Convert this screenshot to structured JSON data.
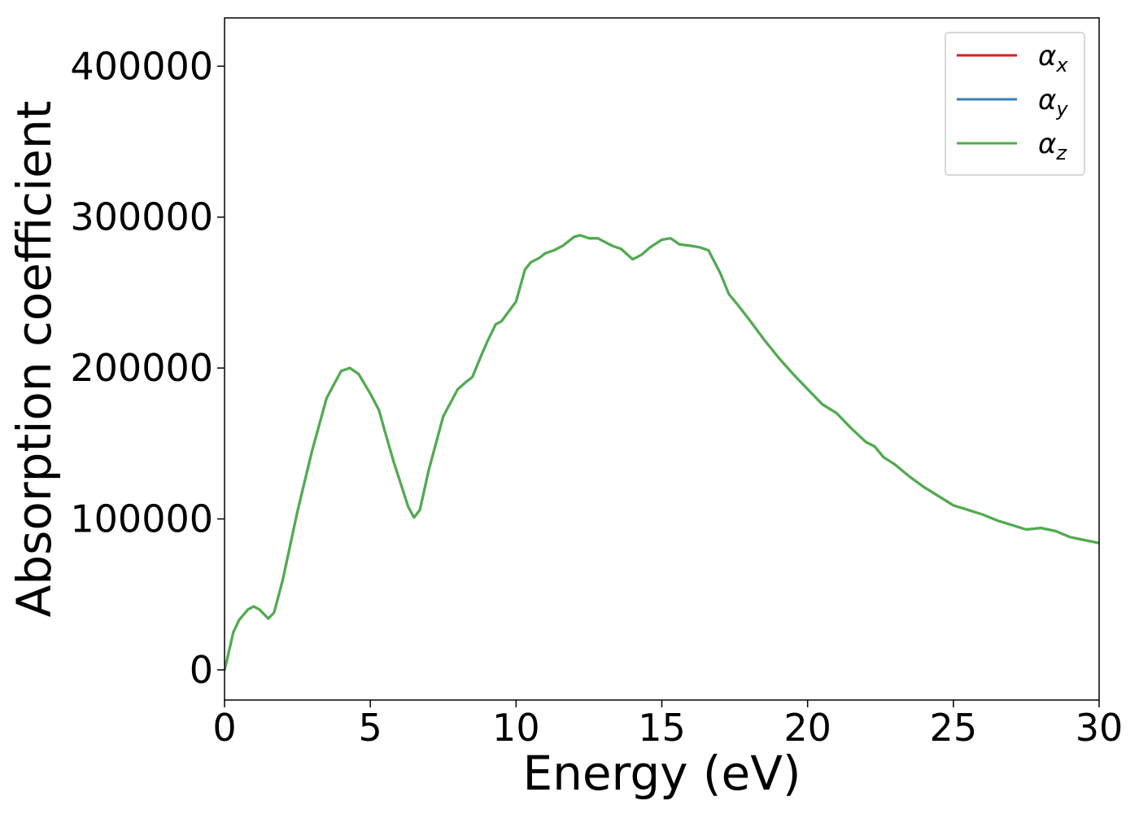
{
  "chart_data": {
    "type": "line",
    "title": "",
    "xlabel": "Energy (eV)",
    "ylabel": "Absorption coefficient",
    "xlim": [
      0,
      30
    ],
    "ylim": [
      -20000,
      432000
    ],
    "xticks": [
      0,
      5,
      10,
      15,
      20,
      25,
      30
    ],
    "xtick_labels": [
      "0",
      "5",
      "10",
      "15",
      "20",
      "25",
      "30"
    ],
    "yticks": [
      0,
      100000,
      200000,
      300000,
      400000
    ],
    "ytick_labels": [
      "0",
      "100000",
      "200000",
      "300000",
      "400000"
    ],
    "grid": false,
    "legend_position": "top-right",
    "x": [
      0,
      0.1,
      0.3,
      0.5,
      0.8,
      1.0,
      1.2,
      1.5,
      1.7,
      2.0,
      2.5,
      3.0,
      3.5,
      4.0,
      4.3,
      4.6,
      5.0,
      5.3,
      5.5,
      5.8,
      6.0,
      6.3,
      6.5,
      6.7,
      7.0,
      7.5,
      8.0,
      8.3,
      8.5,
      8.8,
      9.0,
      9.3,
      9.5,
      10.0,
      10.3,
      10.5,
      10.8,
      11.0,
      11.3,
      11.6,
      12.0,
      12.2,
      12.5,
      12.8,
      13.0,
      13.3,
      13.6,
      14.0,
      14.3,
      14.6,
      15.0,
      15.3,
      15.6,
      16.0,
      16.3,
      16.6,
      17.0,
      17.3,
      17.6,
      18.0,
      18.5,
      19.0,
      19.5,
      20.0,
      20.5,
      21.0,
      21.5,
      22.0,
      22.3,
      22.6,
      23.0,
      23.5,
      24.0,
      24.5,
      25.0,
      25.5,
      26.0,
      26.5,
      27.0,
      27.5,
      28.0,
      28.5,
      29.0,
      29.5,
      30.0
    ],
    "series": [
      {
        "name": "αx",
        "symbol": "α",
        "subscript": "x",
        "color": "#e41a1c",
        "values": [
          0,
          8000,
          25000,
          33000,
          40000,
          42000,
          40000,
          34000,
          38000,
          60000,
          105000,
          145000,
          180000,
          198000,
          200000,
          196000,
          183000,
          172000,
          158000,
          138000,
          126000,
          108000,
          101000,
          106000,
          132000,
          168000,
          186000,
          191000,
          194000,
          208000,
          217000,
          229000,
          231000,
          244000,
          265000,
          270000,
          273000,
          276000,
          278000,
          281000,
          287000,
          288000,
          286000,
          286000,
          284000,
          281000,
          279000,
          272000,
          275000,
          280000,
          285000,
          286000,
          282000,
          281000,
          280000,
          278000,
          263000,
          249000,
          242000,
          232000,
          219000,
          207000,
          196000,
          186000,
          176000,
          170000,
          160000,
          151000,
          148000,
          141000,
          136000,
          128000,
          121000,
          115000,
          109000,
          106000,
          103000,
          99000,
          96000,
          93000,
          94000,
          92000,
          88000,
          86000,
          84000
        ]
      },
      {
        "name": "αy",
        "symbol": "α",
        "subscript": "y",
        "color": "#377eb8",
        "values": [
          0,
          8000,
          25000,
          33000,
          40000,
          42000,
          40000,
          34000,
          38000,
          60000,
          105000,
          145000,
          180000,
          198000,
          200000,
          196000,
          183000,
          172000,
          158000,
          138000,
          126000,
          108000,
          101000,
          106000,
          132000,
          168000,
          186000,
          191000,
          194000,
          208000,
          217000,
          229000,
          231000,
          244000,
          265000,
          270000,
          273000,
          276000,
          278000,
          281000,
          287000,
          288000,
          286000,
          286000,
          284000,
          281000,
          279000,
          272000,
          275000,
          280000,
          285000,
          286000,
          282000,
          281000,
          280000,
          278000,
          263000,
          249000,
          242000,
          232000,
          219000,
          207000,
          196000,
          186000,
          176000,
          170000,
          160000,
          151000,
          148000,
          141000,
          136000,
          128000,
          121000,
          115000,
          109000,
          106000,
          103000,
          99000,
          96000,
          93000,
          94000,
          92000,
          88000,
          86000,
          84000
        ]
      },
      {
        "name": "αz",
        "symbol": "α",
        "subscript": "z",
        "color": "#4daf4a",
        "values": [
          0,
          8000,
          25000,
          33000,
          40000,
          42000,
          40000,
          34000,
          38000,
          60000,
          105000,
          145000,
          180000,
          198000,
          200000,
          196000,
          183000,
          172000,
          158000,
          138000,
          126000,
          108000,
          101000,
          106000,
          132000,
          168000,
          186000,
          191000,
          194000,
          208000,
          217000,
          229000,
          231000,
          244000,
          265000,
          270000,
          273000,
          276000,
          278000,
          281000,
          287000,
          288000,
          286000,
          286000,
          284000,
          281000,
          279000,
          272000,
          275000,
          280000,
          285000,
          286000,
          282000,
          281000,
          280000,
          278000,
          263000,
          249000,
          242000,
          232000,
          219000,
          207000,
          196000,
          186000,
          176000,
          170000,
          160000,
          151000,
          148000,
          141000,
          136000,
          128000,
          121000,
          115000,
          109000,
          106000,
          103000,
          99000,
          96000,
          93000,
          94000,
          92000,
          88000,
          86000,
          84000
        ]
      }
    ]
  }
}
